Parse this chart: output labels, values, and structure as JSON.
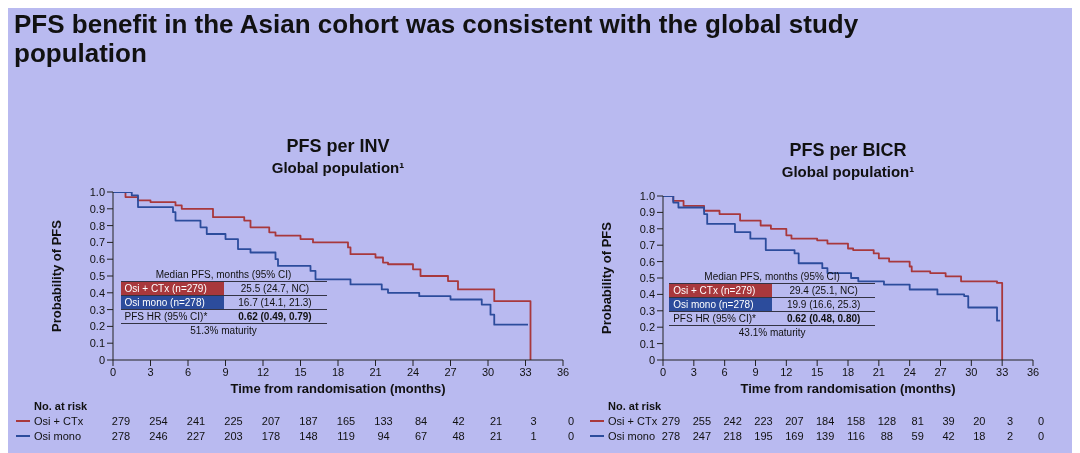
{
  "chart_data": [
    {
      "type": "step",
      "title": "PFS per INV",
      "subtitle": "Global population¹",
      "xlabel": "Time from randomisation (months)",
      "ylabel": "Probability of PFS",
      "xlim": [
        0,
        36
      ],
      "xticks": [
        0,
        3,
        6,
        9,
        12,
        15,
        18,
        21,
        24,
        27,
        30,
        33,
        36
      ],
      "ylim": [
        0,
        1
      ],
      "yticks": [
        0,
        0.1,
        0.2,
        0.3,
        0.4,
        0.5,
        0.6,
        0.7,
        0.8,
        0.9,
        {
          "value": 1,
          "label": "1.0"
        }
      ],
      "grid": false,
      "legend": "bottom",
      "series": [
        {
          "name": "Osi + CTx",
          "color": "#a8383c",
          "x": [
            0,
            1,
            2,
            3,
            5,
            5.5,
            8,
            10.5,
            11,
            12.5,
            13,
            15,
            16,
            18.8,
            19,
            21,
            21.6,
            22,
            24,
            24.6,
            26.8,
            27.6,
            30.5,
            33.4
          ],
          "values": [
            1,
            0.97,
            0.95,
            0.94,
            0.92,
            0.9,
            0.85,
            0.83,
            0.79,
            0.76,
            0.74,
            0.72,
            0.7,
            0.67,
            0.63,
            0.61,
            0.58,
            0.57,
            0.54,
            0.5,
            0.47,
            0.42,
            0.35,
            0
          ]
        },
        {
          "name": "Osi mono",
          "color": "#2c4c9c",
          "x": [
            0,
            1.5,
            2,
            4.8,
            5,
            7,
            7.5,
            9,
            10,
            11,
            13,
            13.2,
            15.8,
            16.2,
            19,
            21.5,
            22,
            24.5,
            27,
            29.5,
            30.2,
            30.5,
            33.2
          ],
          "values": [
            1,
            0.98,
            0.91,
            0.88,
            0.83,
            0.79,
            0.75,
            0.72,
            0.66,
            0.64,
            0.6,
            0.56,
            0.53,
            0.48,
            0.45,
            0.42,
            0.4,
            0.38,
            0.36,
            0.33,
            0.27,
            0.21,
            0.21
          ]
        }
      ],
      "annotations": [
        "Median PFS, months (95% CI)",
        "Osi + CTx (n=279)",
        "25.5 (24.7, NC)",
        "Osi mono (n=278)",
        "16.7 (14.1, 21.3)",
        "PFS HR (95% CI)*",
        "0.62 (0.49, 0.79)",
        "51.3% maturity",
        "No. at risk",
        "279 254 241 225 207 187 165 133 84 42 21 3 0",
        "278 246 227 203 178 148 119 94 67 48 21 1 0",
        "PFS benefit in the Asian cohort was consistent with the global study population"
      ]
    },
    {
      "type": "step",
      "title": "PFS per BICR",
      "subtitle": "Global population¹",
      "xlabel": "Time from randomisation (months)",
      "ylabel": "Probability of PFS",
      "xlim": [
        0,
        36
      ],
      "xticks": [
        0,
        3,
        6,
        9,
        12,
        15,
        18,
        21,
        24,
        27,
        30,
        33,
        36
      ],
      "ylim": [
        0,
        1
      ],
      "yticks": [
        0,
        0.1,
        0.2,
        0.3,
        0.4,
        0.5,
        0.6,
        0.7,
        0.8,
        0.9,
        {
          "value": 1,
          "label": "1.0"
        }
      ],
      "grid": false,
      "legend": "bottom",
      "series": [
        {
          "name": "Osi + CTx",
          "color": "#a8383c",
          "x": [
            0,
            1,
            2,
            4,
            5.5,
            7.5,
            9.5,
            10.5,
            12,
            12.5,
            15,
            16,
            18,
            18.5,
            20.5,
            21,
            22,
            24,
            24.2,
            26,
            27.5,
            29,
            32.5,
            33
          ],
          "values": [
            1,
            0.97,
            0.94,
            0.91,
            0.89,
            0.85,
            0.82,
            0.8,
            0.76,
            0.74,
            0.73,
            0.71,
            0.68,
            0.67,
            0.65,
            0.62,
            0.6,
            0.57,
            0.54,
            0.53,
            0.51,
            0.48,
            0.47,
            0
          ]
        },
        {
          "name": "Osi mono",
          "color": "#2c4c9c",
          "x": [
            0,
            1,
            1.5,
            4,
            4.3,
            7,
            8.5,
            10,
            12.8,
            13.2,
            15.5,
            16,
            18.3,
            19,
            21.5,
            24,
            26.7,
            29.3,
            29.7,
            32.5,
            32.8
          ],
          "values": [
            1,
            0.96,
            0.93,
            0.89,
            0.83,
            0.78,
            0.74,
            0.67,
            0.65,
            0.59,
            0.56,
            0.53,
            0.5,
            0.48,
            0.46,
            0.43,
            0.4,
            0.39,
            0.32,
            0.24,
            0.24
          ]
        }
      ],
      "annotations": [
        "Median PFS, months (95% CI)",
        "Osi + CTx (n=279)",
        "29.4 (25.1, NC)",
        "Osi mono (n=278)",
        "19.9 (16.6, 25.3)",
        "PFS HR (95% CI)*",
        "0.62 (0.48, 0.80)",
        "43.1% maturity",
        "No. at risk",
        "279 255 242 223 207 184 158 128 81 39 20 3 0",
        "278 247 218 195 169 139 116 88 59 42 18 2 0"
      ]
    }
  ]
}
